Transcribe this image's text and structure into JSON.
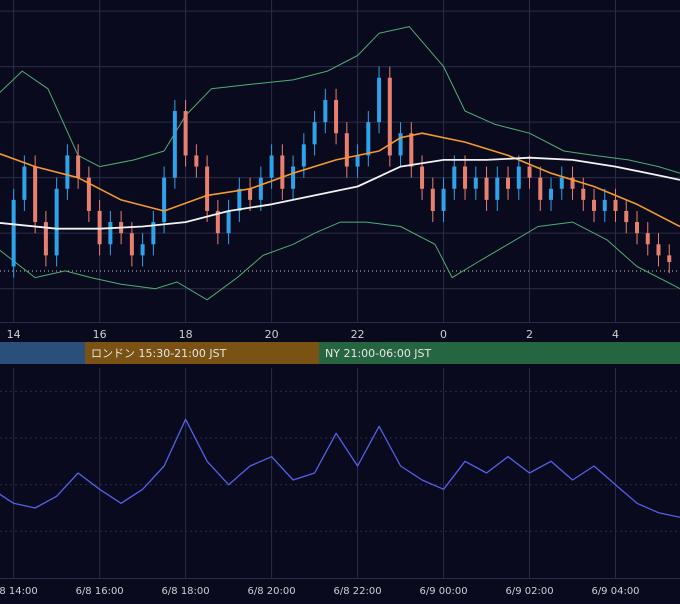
{
  "colors": {
    "background": "#0a0a1f",
    "grid": "#2a2d45",
    "up_candle": "#2fa3e8",
    "down_candle": "#e8806f",
    "ma_short": "#f29a2e",
    "ma_long": "#f2f2f2",
    "bollinger": "#4fae70",
    "oscillator": "#5560e6",
    "session_tokyo": "#2a4f7a",
    "session_london": "#7a5214",
    "session_ny": "#256640",
    "text": "#e6e6e6",
    "axis_text": "#cfcfcf"
  },
  "sessions": [
    {
      "label": ""
    },
    {
      "label": "ロンドン 15:30-21:00 JST"
    },
    {
      "label": "NY 21:00-06:00 JST"
    }
  ],
  "chart_data": [
    {
      "type": "candlestick",
      "title": "",
      "x_tick_labels": [
        "14",
        "16",
        "18",
        "20",
        "22",
        "0",
        "2",
        "4"
      ],
      "x_ticks_hours": [
        14,
        16,
        18,
        20,
        22,
        24,
        26,
        28
      ],
      "x_range_hours": [
        13.45,
        29.5
      ],
      "grid": true,
      "dotted_reference_line": true,
      "series": [
        {
          "kind": "candles",
          "open_close": [
            [
              14.0,
              0.1,
              0.4
            ],
            [
              14.25,
              0.4,
              0.55
            ],
            [
              14.5,
              0.55,
              0.3
            ],
            [
              14.75,
              0.3,
              0.15
            ],
            [
              15.0,
              0.15,
              0.45
            ],
            [
              15.25,
              0.45,
              0.6
            ],
            [
              15.5,
              0.6,
              0.5
            ],
            [
              15.75,
              0.5,
              0.35
            ],
            [
              16.0,
              0.35,
              0.2
            ],
            [
              16.25,
              0.2,
              0.3
            ],
            [
              16.5,
              0.3,
              0.25
            ],
            [
              16.75,
              0.25,
              0.15
            ],
            [
              17.0,
              0.15,
              0.2
            ],
            [
              17.25,
              0.2,
              0.3
            ],
            [
              17.5,
              0.3,
              0.5
            ],
            [
              17.75,
              0.5,
              0.8
            ],
            [
              18.0,
              0.8,
              0.6
            ],
            [
              18.25,
              0.6,
              0.55
            ],
            [
              18.5,
              0.55,
              0.35
            ],
            [
              18.75,
              0.35,
              0.25
            ],
            [
              19.0,
              0.25,
              0.35
            ],
            [
              19.25,
              0.35,
              0.45
            ],
            [
              19.5,
              0.45,
              0.4
            ],
            [
              19.75,
              0.4,
              0.5
            ],
            [
              20.0,
              0.5,
              0.6
            ],
            [
              20.25,
              0.6,
              0.45
            ],
            [
              20.5,
              0.45,
              0.55
            ],
            [
              20.75,
              0.55,
              0.65
            ],
            [
              21.0,
              0.65,
              0.75
            ],
            [
              21.25,
              0.75,
              0.85
            ],
            [
              21.5,
              0.85,
              0.7
            ],
            [
              21.75,
              0.7,
              0.55
            ],
            [
              22.0,
              0.55,
              0.6
            ],
            [
              22.25,
              0.6,
              0.75
            ],
            [
              22.5,
              0.75,
              0.95
            ],
            [
              22.75,
              0.95,
              0.6
            ],
            [
              23.0,
              0.6,
              0.7
            ],
            [
              23.25,
              0.7,
              0.55
            ],
            [
              23.5,
              0.55,
              0.45
            ],
            [
              23.75,
              0.45,
              0.35
            ],
            [
              24.0,
              0.35,
              0.45
            ],
            [
              24.25,
              0.45,
              0.55
            ],
            [
              24.5,
              0.55,
              0.45
            ],
            [
              24.75,
              0.45,
              0.5
            ],
            [
              25.0,
              0.5,
              0.4
            ],
            [
              25.25,
              0.4,
              0.5
            ],
            [
              25.5,
              0.5,
              0.45
            ],
            [
              25.75,
              0.45,
              0.55
            ],
            [
              26.0,
              0.55,
              0.5
            ],
            [
              26.25,
              0.5,
              0.4
            ],
            [
              26.5,
              0.4,
              0.45
            ],
            [
              26.75,
              0.45,
              0.5
            ],
            [
              27.0,
              0.5,
              0.45
            ],
            [
              27.25,
              0.45,
              0.4
            ],
            [
              27.5,
              0.4,
              0.35
            ],
            [
              27.75,
              0.35,
              0.4
            ],
            [
              28.0,
              0.4,
              0.35
            ],
            [
              28.25,
              0.35,
              0.3
            ],
            [
              28.5,
              0.3,
              0.25
            ],
            [
              28.75,
              0.25,
              0.2
            ],
            [
              29.0,
              0.2,
              0.15
            ],
            [
              29.25,
              0.15,
              0.12
            ]
          ]
        },
        {
          "kind": "line",
          "role": "ma_short",
          "points": [
            [
              13.5,
              0.62
            ],
            [
              14.5,
              0.55
            ],
            [
              15.5,
              0.5
            ],
            [
              16.5,
              0.4
            ],
            [
              17.5,
              0.35
            ],
            [
              18.5,
              0.42
            ],
            [
              19.5,
              0.45
            ],
            [
              20.5,
              0.52
            ],
            [
              21.5,
              0.58
            ],
            [
              22.5,
              0.62
            ],
            [
              23.0,
              0.68
            ],
            [
              23.5,
              0.7
            ],
            [
              24.5,
              0.66
            ],
            [
              25.5,
              0.6
            ],
            [
              26.5,
              0.52
            ],
            [
              27.5,
              0.46
            ],
            [
              28.5,
              0.38
            ],
            [
              29.5,
              0.28
            ]
          ]
        },
        {
          "kind": "line",
          "role": "ma_long",
          "points": [
            [
              13.5,
              0.3
            ],
            [
              15.0,
              0.27
            ],
            [
              16.0,
              0.27
            ],
            [
              17.0,
              0.28
            ],
            [
              18.0,
              0.3
            ],
            [
              19.0,
              0.35
            ],
            [
              20.0,
              0.38
            ],
            [
              21.0,
              0.42
            ],
            [
              22.0,
              0.46
            ],
            [
              23.0,
              0.55
            ],
            [
              24.0,
              0.58
            ],
            [
              25.0,
              0.58
            ],
            [
              26.0,
              0.59
            ],
            [
              27.0,
              0.58
            ],
            [
              28.0,
              0.55
            ],
            [
              29.0,
              0.51
            ],
            [
              29.5,
              0.49
            ]
          ]
        },
        {
          "kind": "line",
          "role": "bollinger_upper",
          "points": [
            [
              13.5,
              0.85
            ],
            [
              14.2,
              0.98
            ],
            [
              14.8,
              0.9
            ],
            [
              15.5,
              0.6
            ],
            [
              16.0,
              0.55
            ],
            [
              16.8,
              0.58
            ],
            [
              17.5,
              0.62
            ],
            [
              18.0,
              0.78
            ],
            [
              18.6,
              0.9
            ],
            [
              19.5,
              0.92
            ],
            [
              20.5,
              0.94
            ],
            [
              21.3,
              0.98
            ],
            [
              22.0,
              1.05
            ],
            [
              22.5,
              1.15
            ],
            [
              23.2,
              1.18
            ],
            [
              24.0,
              1.0
            ],
            [
              24.5,
              0.8
            ],
            [
              25.2,
              0.74
            ],
            [
              26.0,
              0.7
            ],
            [
              26.8,
              0.62
            ],
            [
              27.5,
              0.6
            ],
            [
              28.3,
              0.58
            ],
            [
              29.0,
              0.55
            ],
            [
              29.5,
              0.52
            ]
          ]
        },
        {
          "kind": "line",
          "role": "bollinger_lower",
          "points": [
            [
              13.5,
              0.2
            ],
            [
              14.5,
              0.05
            ],
            [
              15.2,
              0.08
            ],
            [
              15.8,
              0.05
            ],
            [
              16.5,
              0.02
            ],
            [
              17.3,
              0.0
            ],
            [
              17.8,
              0.03
            ],
            [
              18.5,
              -0.05
            ],
            [
              19.2,
              0.05
            ],
            [
              19.8,
              0.15
            ],
            [
              20.5,
              0.2
            ],
            [
              21.0,
              0.25
            ],
            [
              21.6,
              0.3
            ],
            [
              22.2,
              0.3
            ],
            [
              23.0,
              0.28
            ],
            [
              23.8,
              0.2
            ],
            [
              24.2,
              0.05
            ],
            [
              24.8,
              0.12
            ],
            [
              25.5,
              0.2
            ],
            [
              26.2,
              0.28
            ],
            [
              27.0,
              0.3
            ],
            [
              27.8,
              0.22
            ],
            [
              28.5,
              0.1
            ],
            [
              29.3,
              0.02
            ],
            [
              29.5,
              0.0
            ]
          ]
        }
      ]
    },
    {
      "type": "line",
      "title": "",
      "x_tick_labels": [
        "6/8 14:00",
        "6/8 16:00",
        "6/8 18:00",
        "6/8 20:00",
        "6/8 22:00",
        "6/9 00:00",
        "6/9 02:00",
        "6/9 04:00"
      ],
      "x_ticks_hours": [
        14,
        16,
        18,
        20,
        22,
        24,
        26,
        28
      ],
      "x_range_hours": [
        13.45,
        29.5
      ],
      "grid": true,
      "series": [
        {
          "kind": "line",
          "role": "oscillator",
          "points": [
            [
              13.5,
              48
            ],
            [
              14.0,
              42
            ],
            [
              14.5,
              40
            ],
            [
              15.0,
              45
            ],
            [
              15.5,
              55
            ],
            [
              16.0,
              48
            ],
            [
              16.5,
              42
            ],
            [
              17.0,
              48
            ],
            [
              17.5,
              58
            ],
            [
              18.0,
              78
            ],
            [
              18.5,
              60
            ],
            [
              19.0,
              50
            ],
            [
              19.5,
              58
            ],
            [
              20.0,
              62
            ],
            [
              20.5,
              52
            ],
            [
              21.0,
              55
            ],
            [
              21.5,
              72
            ],
            [
              22.0,
              58
            ],
            [
              22.5,
              75
            ],
            [
              23.0,
              58
            ],
            [
              23.5,
              52
            ],
            [
              24.0,
              48
            ],
            [
              24.5,
              60
            ],
            [
              25.0,
              55
            ],
            [
              25.5,
              62
            ],
            [
              26.0,
              55
            ],
            [
              26.5,
              60
            ],
            [
              27.0,
              52
            ],
            [
              27.5,
              58
            ],
            [
              28.0,
              50
            ],
            [
              28.5,
              42
            ],
            [
              29.0,
              38
            ],
            [
              29.5,
              36
            ]
          ]
        }
      ]
    }
  ]
}
